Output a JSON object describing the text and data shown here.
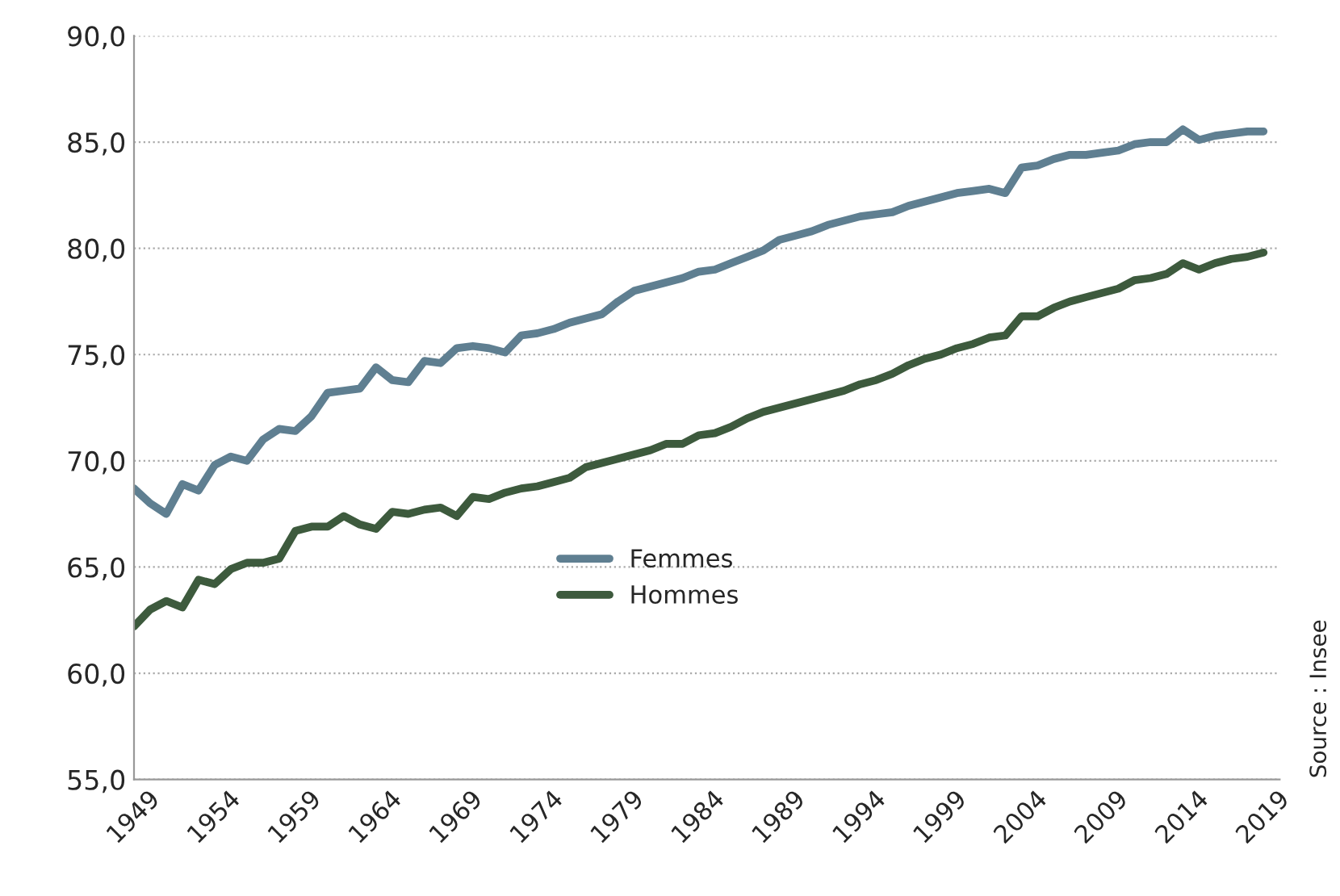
{
  "chart_data": {
    "type": "line",
    "x": [
      1949,
      1950,
      1951,
      1952,
      1953,
      1954,
      1955,
      1956,
      1957,
      1958,
      1959,
      1960,
      1961,
      1962,
      1963,
      1964,
      1965,
      1966,
      1967,
      1968,
      1969,
      1970,
      1971,
      1972,
      1973,
      1974,
      1975,
      1976,
      1977,
      1978,
      1979,
      1980,
      1981,
      1982,
      1983,
      1984,
      1985,
      1986,
      1987,
      1988,
      1989,
      1990,
      1991,
      1992,
      1993,
      1994,
      1995,
      1996,
      1997,
      1998,
      1999,
      2000,
      2001,
      2002,
      2003,
      2004,
      2005,
      2006,
      2007,
      2008,
      2009,
      2010,
      2011,
      2012,
      2013,
      2014,
      2015,
      2016,
      2017,
      2018,
      2019
    ],
    "series": [
      {
        "name": "Femmes",
        "color": "#5f7f91",
        "values": [
          68.7,
          68.0,
          67.5,
          68.9,
          68.6,
          69.8,
          70.2,
          70.0,
          71.0,
          71.5,
          71.4,
          72.1,
          73.2,
          73.3,
          73.4,
          74.4,
          73.8,
          73.7,
          74.7,
          74.6,
          75.3,
          75.4,
          75.3,
          75.1,
          75.9,
          76.0,
          76.2,
          76.5,
          76.7,
          76.9,
          77.5,
          78.0,
          78.2,
          78.4,
          78.6,
          78.9,
          79.0,
          79.3,
          79.6,
          79.9,
          80.4,
          80.6,
          80.8,
          81.1,
          81.3,
          81.5,
          81.6,
          81.7,
          82.0,
          82.2,
          82.4,
          82.6,
          82.7,
          82.8,
          82.6,
          83.8,
          83.9,
          84.2,
          84.4,
          84.4,
          84.5,
          84.6,
          84.9,
          85.0,
          85.0,
          85.6,
          85.1,
          85.3,
          85.4,
          85.5,
          85.5
        ]
      },
      {
        "name": "Hommes",
        "color": "#3d5a3d",
        "values": [
          62.2,
          63.0,
          63.4,
          63.1,
          64.4,
          64.2,
          64.9,
          65.2,
          65.2,
          65.4,
          66.7,
          66.9,
          66.9,
          67.4,
          67.0,
          66.8,
          67.6,
          67.5,
          67.7,
          67.8,
          67.4,
          68.3,
          68.2,
          68.5,
          68.7,
          68.8,
          69.0,
          69.2,
          69.7,
          69.9,
          70.1,
          70.3,
          70.5,
          70.8,
          70.8,
          71.2,
          71.3,
          71.6,
          72.0,
          72.3,
          72.5,
          72.7,
          72.9,
          73.1,
          73.3,
          73.6,
          73.8,
          74.1,
          74.5,
          74.8,
          75.0,
          75.3,
          75.5,
          75.8,
          75.9,
          76.8,
          76.8,
          77.2,
          77.5,
          77.7,
          77.9,
          78.1,
          78.5,
          78.6,
          78.8,
          79.3,
          79.0,
          79.3,
          79.5,
          79.6,
          79.8
        ]
      }
    ],
    "xlim": [
      1949,
      2020
    ],
    "xticks": [
      1949,
      1954,
      1959,
      1964,
      1969,
      1974,
      1979,
      1984,
      1989,
      1994,
      1999,
      2004,
      2009,
      2014,
      2019
    ],
    "ylim": [
      55,
      90
    ],
    "yticks": [
      {
        "value": 55,
        "label": "55,0"
      },
      {
        "value": 60,
        "label": "60,0"
      },
      {
        "value": 65,
        "label": "65,0"
      },
      {
        "value": 70,
        "label": "70,0"
      },
      {
        "value": 75,
        "label": "75,0"
      },
      {
        "value": 80,
        "label": "80,0"
      },
      {
        "value": 85,
        "label": "85,0"
      },
      {
        "value": 90,
        "label": "90,0"
      }
    ],
    "grid": "y",
    "legend": "bottom",
    "line_style": "solid",
    "marker": "none",
    "annotations": [
      "Source : Insee"
    ]
  }
}
